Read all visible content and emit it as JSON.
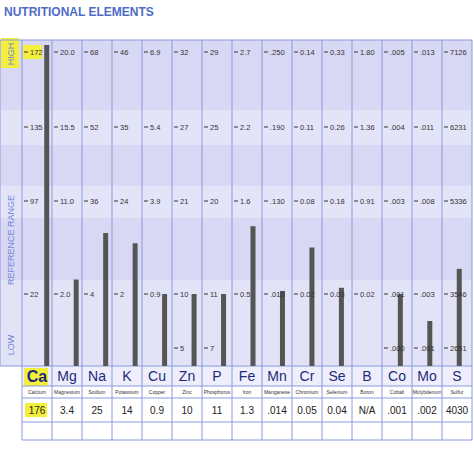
{
  "chart_data": {
    "type": "bar",
    "title": "NUTRITIONAL ELEMENTS",
    "y_label": "REFERENCE RANGE",
    "high_label": "HIGH",
    "low_label": "LOW",
    "color": "#555555",
    "categories": [
      "Ca",
      "Mg",
      "Na",
      "K",
      "Cu",
      "Zn",
      "P",
      "Fe",
      "Mn",
      "Cr",
      "Se",
      "B",
      "Co",
      "Mo",
      "S"
    ],
    "names": [
      "Calcium",
      "Magnesium",
      "Sodium",
      "Potassium",
      "Copper",
      "Zinc",
      "Phosphorus",
      "Iron",
      "Manganese",
      "Chromium",
      "Selenium",
      "Boron",
      "Cobalt",
      "Molybdenum",
      "Sulfur"
    ],
    "values": [
      176,
      3.4,
      25,
      14,
      0.9,
      10,
      11,
      1.3,
      0.014,
      0.05,
      0.04,
      null,
      0.001,
      0.002,
      4030
    ],
    "value_labels": [
      "176",
      "3.4",
      "25",
      "14",
      "0.9",
      "10",
      "11",
      "1.3",
      ".014",
      "0.05",
      "0.04",
      "N/A",
      ".001",
      ".002",
      "4030"
    ],
    "ticks": [
      [
        172,
        135,
        97,
        22,
        null
      ],
      [
        {
          "value": 20,
          "label": "20.0"
        },
        15.5,
        {
          "value": 11,
          "label": "11.0"
        },
        {
          "value": 2,
          "label": "2.0"
        },
        null
      ],
      [
        68,
        52,
        36,
        4,
        null
      ],
      [
        46,
        35,
        24,
        2,
        null
      ],
      [
        6.9,
        5.4,
        3.9,
        0.9,
        null
      ],
      [
        32,
        27,
        21,
        10,
        5
      ],
      [
        29,
        25,
        20,
        11,
        7
      ],
      [
        2.7,
        2.2,
        1.6,
        0.5,
        null
      ],
      [
        {
          "value": 0.25,
          "label": ".250"
        },
        {
          "value": 0.19,
          "label": ".190"
        },
        {
          "value": 0.13,
          "label": ".130"
        },
        {
          "value": 0.01,
          "label": ".010"
        },
        null
      ],
      [
        0.14,
        0.11,
        0.08,
        0.02,
        null
      ],
      [
        0.33,
        0.26,
        0.18,
        0.03,
        null
      ],
      [
        {
          "value": 1.8,
          "label": "1.80"
        },
        1.36,
        0.91,
        0.02,
        null
      ],
      [
        {
          "value": 0.005,
          "label": ".005"
        },
        {
          "value": 0.004,
          "label": ".004"
        },
        {
          "value": 0.003,
          "label": ".003"
        },
        {
          "value": 0.001,
          "label": ".001"
        },
        {
          "value": 0,
          "label": ".000"
        }
      ],
      [
        {
          "value": 0.013,
          "label": ".013"
        },
        {
          "value": 0.011,
          "label": ".011"
        },
        {
          "value": 0.008,
          "label": ".008"
        },
        {
          "value": 0.003,
          "label": ".003"
        },
        {
          "value": 0.001,
          "label": ".001"
        }
      ],
      [
        7126,
        6231,
        5336,
        3546,
        2651
      ]
    ]
  }
}
